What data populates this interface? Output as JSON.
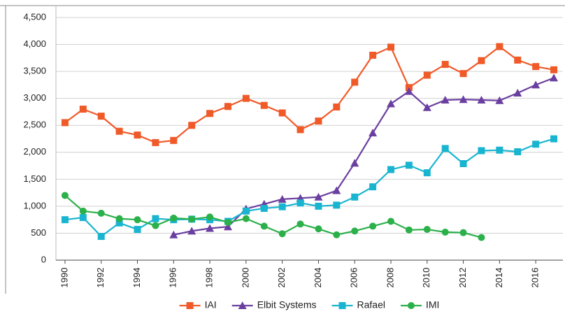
{
  "chart_data": {
    "type": "line",
    "x": [
      1990,
      1991,
      1992,
      1993,
      1994,
      1995,
      1996,
      1997,
      1998,
      1999,
      2000,
      2001,
      2002,
      2003,
      2004,
      2005,
      2006,
      2007,
      2008,
      2009,
      2010,
      2011,
      2012,
      2013,
      2014,
      2015,
      2016,
      2017
    ],
    "xlim": [
      1989.5,
      2017.5
    ],
    "xticks": [
      1990,
      1992,
      1994,
      1996,
      1998,
      2000,
      2002,
      2004,
      2006,
      2008,
      2010,
      2012,
      2014,
      2016
    ],
    "ylim": [
      0,
      4500
    ],
    "yticks": [
      0,
      500,
      {
        "value": 1000,
        "label": "1,000"
      },
      {
        "value": 1500,
        "label": "1,500"
      },
      {
        "value": 2000,
        "label": "2,000"
      },
      {
        "value": 2500,
        "label": "2,500"
      },
      {
        "value": 3000,
        "label": "3,000"
      },
      {
        "value": 3500,
        "label": "3,500"
      },
      {
        "value": 4000,
        "label": "4,000"
      },
      {
        "value": 4500,
        "label": "4,500"
      }
    ],
    "grid": true,
    "legend": "bottom",
    "series": [
      {
        "name": "IAI",
        "color": "#f05a28",
        "marker": "square",
        "values": [
          2550,
          2800,
          2670,
          2390,
          2320,
          2180,
          2220,
          2500,
          2720,
          2850,
          3000,
          2870,
          2730,
          2420,
          2580,
          2840,
          3300,
          3800,
          3950,
          3200,
          3430,
          3630,
          3460,
          3700,
          3960,
          3710,
          3590,
          3530
        ]
      },
      {
        "name": "Elbit Systems",
        "color": "#6b3fa0",
        "marker": "triangle",
        "values": [
          null,
          null,
          null,
          null,
          null,
          null,
          470,
          540,
          590,
          620,
          950,
          1040,
          1130,
          1150,
          1170,
          1290,
          1800,
          2360,
          2900,
          3130,
          2830,
          2970,
          2980,
          2970,
          2960,
          3100,
          3250,
          3380
        ]
      },
      {
        "name": "Rafael",
        "color": "#19b5d0",
        "marker": "square",
        "values": [
          750,
          790,
          440,
          690,
          570,
          770,
          750,
          760,
          750,
          720,
          910,
          960,
          990,
          1060,
          1000,
          1020,
          1170,
          1360,
          1680,
          1760,
          1620,
          2070,
          1790,
          2030,
          2040,
          2010,
          2150,
          2250
        ]
      },
      {
        "name": "IMI",
        "color": "#2bb04a",
        "marker": "circle",
        "values": [
          1200,
          910,
          870,
          770,
          750,
          640,
          780,
          760,
          800,
          700,
          770,
          630,
          490,
          670,
          580,
          470,
          540,
          630,
          720,
          560,
          570,
          520,
          510,
          420,
          null,
          null,
          null,
          null
        ]
      }
    ]
  }
}
